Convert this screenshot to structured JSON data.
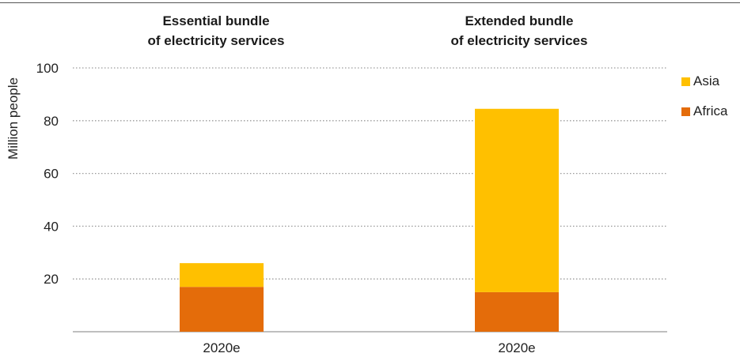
{
  "chart_data": {
    "type": "bar",
    "stacked": true,
    "ylabel": "Million people",
    "ylim": [
      0,
      100
    ],
    "yticks": [
      20,
      40,
      60,
      80,
      100
    ],
    "grid": true,
    "legend_position": "right",
    "panels": [
      {
        "title_line1": "Essential bundle",
        "title_line2": "of electricity services",
        "category": "2020e",
        "stack": [
          {
            "name": "Africa",
            "value": 17
          },
          {
            "name": "Asia",
            "value": 9
          }
        ]
      },
      {
        "title_line1": "Extended bundle",
        "title_line2": "of electricity services",
        "category": "2020e",
        "stack": [
          {
            "name": "Africa",
            "value": 15
          },
          {
            "name": "Asia",
            "value": 69.5
          }
        ]
      }
    ],
    "legend": [
      {
        "name": "Asia",
        "color": "#FFC000"
      },
      {
        "name": "Africa",
        "color": "#E46C0A"
      }
    ]
  }
}
